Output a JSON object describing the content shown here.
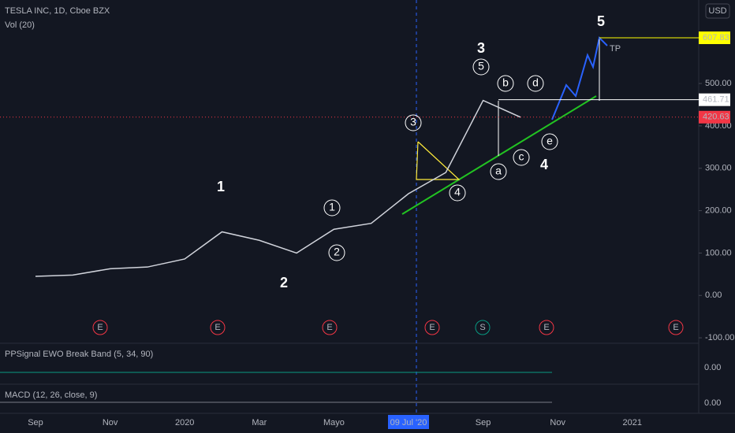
{
  "header": {
    "symbol": "TESLA INC, 1D, Cboe BZX",
    "volume": "Vol (20)",
    "currency": "USD"
  },
  "chart_data": {
    "type": "line",
    "categories": [
      "Sep",
      null,
      "Nov",
      null,
      "2020",
      null,
      "Mar",
      null,
      "Mayo",
      null,
      "09 Jul '20",
      null,
      "Sep",
      null,
      "Nov",
      null,
      "2021"
    ],
    "series": [
      {
        "name": "TSLA",
        "color": "#d1d4dc",
        "values": [
          45,
          48,
          63,
          67,
          86,
          150,
          130,
          100,
          156,
          170,
          240,
          290,
          460,
          420.63,
          null,
          null,
          null
        ]
      }
    ],
    "ylim": [
      -111,
      697
    ],
    "yticks": [
      {
        "value": -100,
        "label": "-100.00"
      },
      {
        "value": 0,
        "label": "0.00"
      },
      {
        "value": 100,
        "label": "100.00"
      },
      {
        "value": 200,
        "label": "200.00"
      },
      {
        "value": 300,
        "label": "300.00"
      },
      {
        "value": 400,
        "label": "400.00"
      },
      {
        "value": 500,
        "label": "500.00"
      }
    ],
    "price_levels": [
      {
        "value": 607.83,
        "color": "#ffff00"
      },
      {
        "value": 461.71,
        "color": "#ffffff"
      },
      {
        "value": 420.63,
        "color": "#f23645"
      }
    ],
    "annotations": [
      "1",
      "2",
      "3",
      "4",
      "5",
      "1",
      "2",
      "3",
      "4",
      "5",
      "a",
      "b",
      "c",
      "d",
      "e",
      "TP"
    ],
    "events": [
      "E",
      "E",
      "E",
      "E",
      "S",
      "E",
      "E"
    ]
  },
  "panes": [
    {
      "title": "PPSignal EWO Break Band (5, 34, 90)",
      "tick": "0.00"
    },
    {
      "title": "MACD (12, 26, close, 9)",
      "tick": "0.00"
    }
  ]
}
